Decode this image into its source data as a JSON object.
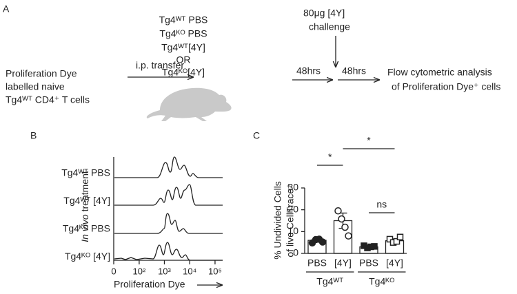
{
  "panel_a": {
    "label": "A",
    "source": [
      "Proliferation Dye",
      "labelled naive",
      "Tg4ᵂᵀ CD4⁺ T cells"
    ],
    "transfer": "i.p. transfer",
    "treatments": [
      "Tg4ᵂᵀ PBS",
      "Tg4ᴷᴼ PBS",
      "Tg4ᵂᵀ[4Y]",
      "OR",
      "Tg4ᴷᴼ[4Y]"
    ],
    "challenge": [
      "80μg [4Y]",
      "challenge"
    ],
    "intervals": [
      "48hrs",
      "48hrs"
    ],
    "readout": [
      "Flow cytometric analysis",
      "of Proliferation Dye⁺ cells"
    ]
  },
  "chart_data": [
    {
      "type": "ridge",
      "panel": "B",
      "series": [
        {
          "name": "Tg4ᵂᵀ PBS"
        },
        {
          "name": "Tg4ᵂᵀ [4Y]"
        },
        {
          "name": "Tg4ᴷᴼ PBS"
        },
        {
          "name": "Tg4ᴷᴼ [4Y]"
        }
      ],
      "xlabel": "Proliferation Dye",
      "ylabel": [
        "In vivo",
        " treatment"
      ],
      "xscale": "biexponential",
      "xlim": [
        0,
        200000
      ],
      "xticks": [
        0,
        {
          "value": 100,
          "label": "10²"
        },
        {
          "value": 1000,
          "label": "10³"
        },
        {
          "value": 10000,
          "label": "10⁴"
        },
        {
          "value": 100000,
          "label": "10⁵"
        }
      ]
    },
    {
      "type": "bar",
      "panel": "C",
      "categories": [
        "PBS",
        "[4Y]",
        "PBS",
        "[4Y]"
      ],
      "groups": [
        "Tg4ᵂᵀ",
        "Tg4ᴷᴼ"
      ],
      "values": [
        6,
        15,
        3,
        5.8
      ],
      "errors": [
        0.7,
        3.5,
        0.5,
        0.8
      ],
      "points": [
        [
          4.8,
          6.3,
          6.5,
          5.2
        ],
        [
          19.5,
          15.8,
          12,
          8
        ],
        [
          3.5,
          2.5,
          3,
          3.2
        ],
        [
          6.5,
          5,
          5.5,
          7.5
        ]
      ],
      "markers": [
        "filled-circle",
        "open-circle",
        "filled-square",
        "open-square"
      ],
      "ylabel": [
        "% Undivided Cells",
        "of live CellTrace⁺"
      ],
      "ylim": [
        0,
        30
      ],
      "yticks": [
        0,
        10,
        20,
        30
      ],
      "annotations": [
        {
          "text": "*",
          "from": 1,
          "to": 2
        },
        {
          "text": "*",
          "from": 2,
          "to": 4
        },
        {
          "text": "ns",
          "from": 3,
          "to": 4
        }
      ]
    }
  ]
}
